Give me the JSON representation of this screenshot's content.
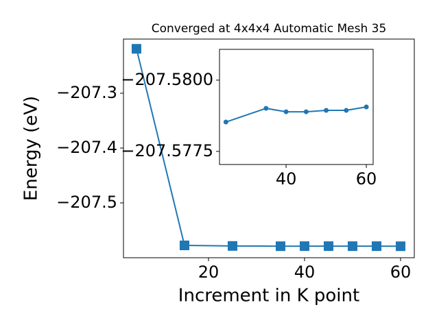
{
  "chart_data": [
    {
      "type": "line",
      "title": "Converged at 4x4x4 Automatic Mesh 35",
      "x_label": "Increment in K point",
      "y_label": "Energy (eV)",
      "series": [
        {
          "color": "#1f77b4",
          "marker": "square",
          "x": [
            5,
            15,
            25,
            35,
            40,
            45,
            50,
            55,
            60
          ],
          "values": [
            -207.219,
            -207.5775,
            -207.57853,
            -207.57901,
            -207.57889,
            -207.57889,
            -207.57894,
            -207.57894,
            -207.57906
          ]
        }
      ],
      "xlim": [
        2.29,
        62.86
      ],
      "xticks": [
        20,
        40,
        60
      ],
      "ylim": [
        -207.6,
        -207.20125
      ],
      "yticks": [
        {
          "value": -207.3,
          "label": "−207.3"
        },
        {
          "value": -207.4,
          "label": "−207.4"
        },
        {
          "value": -207.5,
          "label": "−207.5"
        }
      ]
    },
    {
      "type": "line",
      "series": [
        {
          "color": "#1f77b4",
          "marker": "circle",
          "x": [
            25,
            35,
            40,
            45,
            50,
            55,
            60
          ],
          "values": [
            -207.57853,
            -207.57901,
            -207.57889,
            -207.57889,
            -207.57894,
            -207.57894,
            -207.57906
          ]
        }
      ],
      "xlim": [
        23.4,
        61.7
      ],
      "xticks": [
        40,
        60
      ],
      "ylim": [
        -207.57704,
        -207.58108
      ],
      "yticks": [
        {
          "value": -207.58,
          "label": "−207.5800"
        },
        {
          "value": -207.5775,
          "label": "−207.5775"
        }
      ]
    }
  ]
}
